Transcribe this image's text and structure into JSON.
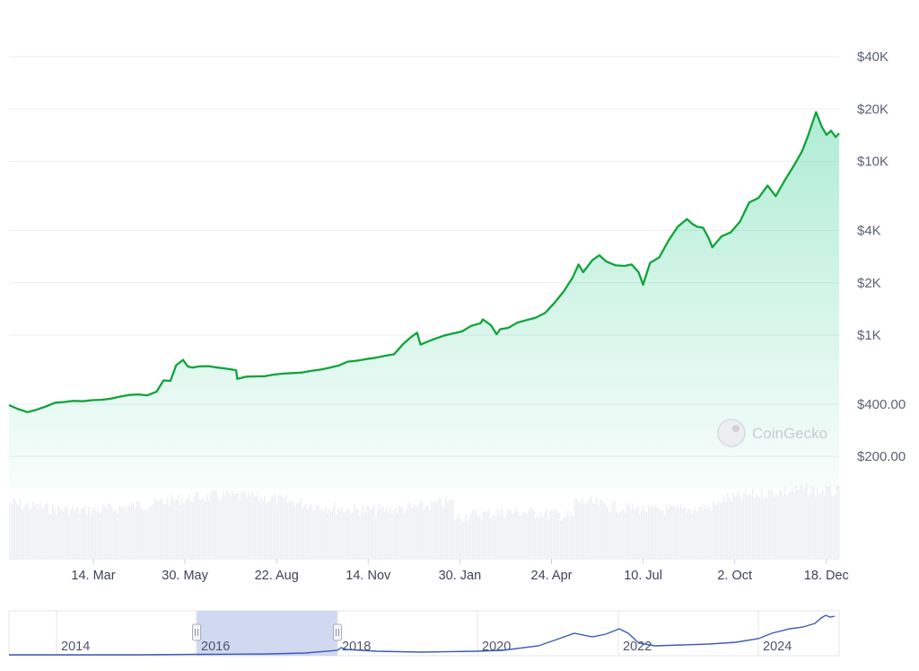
{
  "chart_data": {
    "type": "area",
    "scale": "log",
    "grid": true,
    "y_ticks": [
      {
        "value": 200,
        "label": "$200.00"
      },
      {
        "value": 400,
        "label": "$400.00"
      },
      {
        "value": 1000,
        "label": "$1K"
      },
      {
        "value": 2000,
        "label": "$2K"
      },
      {
        "value": 4000,
        "label": "$4K"
      },
      {
        "value": 10000,
        "label": "$10K"
      },
      {
        "value": 20000,
        "label": "$20K"
      },
      {
        "value": 40000,
        "label": "$40K"
      }
    ],
    "ylim": [
      130,
      50000
    ],
    "x_ticks": [
      "14. Mar",
      "30. May",
      "22. Aug",
      "14. Nov",
      "30. Jan",
      "24. Apr",
      "10. Jul",
      "2. Oct",
      "18. Dec"
    ],
    "series": [
      {
        "x": [
          "2016-01-17",
          "2016-01-25",
          "2016-02-02",
          "2016-02-10",
          "2016-02-18",
          "2016-02-26",
          "2016-03-05",
          "2016-03-13",
          "2016-03-21",
          "2016-03-29",
          "2016-04-06",
          "2016-04-14",
          "2016-04-22",
          "2016-04-30",
          "2016-05-08",
          "2016-05-16",
          "2016-05-24",
          "2016-05-30",
          "2016-06-05",
          "2016-06-10",
          "2016-06-16",
          "2016-06-20",
          "2016-06-24",
          "2016-06-30",
          "2016-07-08",
          "2016-07-16",
          "2016-07-24",
          "2016-08-01",
          "2016-08-02",
          "2016-08-10",
          "2016-08-18",
          "2016-08-26",
          "2016-09-03",
          "2016-09-11",
          "2016-09-19",
          "2016-09-27",
          "2016-10-05",
          "2016-10-13",
          "2016-10-21",
          "2016-10-29",
          "2016-11-06",
          "2016-11-14",
          "2016-11-22",
          "2016-11-30",
          "2016-12-08",
          "2016-12-16",
          "2016-12-24",
          "2016-12-30",
          "2017-01-03",
          "2017-01-05",
          "2017-01-08",
          "2017-01-12",
          "2017-01-20",
          "2017-01-28",
          "2017-02-05",
          "2017-02-13",
          "2017-02-21",
          "2017-03-01",
          "2017-03-03",
          "2017-03-10",
          "2017-03-15",
          "2017-03-18",
          "2017-03-25",
          "2017-04-02",
          "2017-04-10",
          "2017-04-18",
          "2017-04-26",
          "2017-05-04",
          "2017-05-12",
          "2017-05-20",
          "2017-05-25",
          "2017-05-29",
          "2017-06-06",
          "2017-06-12",
          "2017-06-18",
          "2017-06-26",
          "2017-07-04",
          "2017-07-10",
          "2017-07-16",
          "2017-07-20",
          "2017-07-26",
          "2017-08-03",
          "2017-08-11",
          "2017-08-19",
          "2017-08-27",
          "2017-09-01",
          "2017-09-05",
          "2017-09-10",
          "2017-09-15",
          "2017-09-18",
          "2017-09-26",
          "2017-10-04",
          "2017-10-12",
          "2017-10-20",
          "2017-10-28",
          "2017-11-05",
          "2017-11-12",
          "2017-11-20",
          "2017-11-28",
          "2017-12-05",
          "2017-12-10",
          "2017-12-17",
          "2017-12-22",
          "2017-12-26",
          "2017-12-30",
          "2018-01-03",
          "2018-01-06"
        ],
        "values": [
          395,
          375,
          360,
          372,
          388,
          408,
          412,
          418,
          416,
          422,
          424,
          430,
          442,
          452,
          455,
          450,
          472,
          548,
          545,
          670,
          720,
          660,
          650,
          660,
          662,
          650,
          640,
          628,
          560,
          576,
          578,
          580,
          592,
          600,
          604,
          608,
          622,
          632,
          648,
          668,
          703,
          712,
          728,
          740,
          760,
          775,
          890,
          965,
          1010,
          1030,
          880,
          905,
          950,
          990,
          1020,
          1050,
          1130,
          1170,
          1230,
          1140,
          1010,
          1080,
          1100,
          1180,
          1220,
          1260,
          1340,
          1530,
          1780,
          2150,
          2550,
          2300,
          2700,
          2880,
          2650,
          2520,
          2500,
          2550,
          2300,
          1950,
          2600,
          2800,
          3500,
          4200,
          4650,
          4350,
          4200,
          4150,
          3600,
          3200,
          3700,
          3900,
          4500,
          5800,
          6150,
          7250,
          6300,
          7800,
          9500,
          11500,
          14000,
          19200,
          15800,
          14200,
          15000,
          13800,
          14500
        ]
      }
    ],
    "navigator": {
      "years": [
        "2014",
        "2016",
        "2018",
        "2020",
        "2022",
        "2024"
      ],
      "selected_range": [
        "2016-01-17",
        "2018-01-06"
      ]
    },
    "watermark": "CoinGecko"
  }
}
